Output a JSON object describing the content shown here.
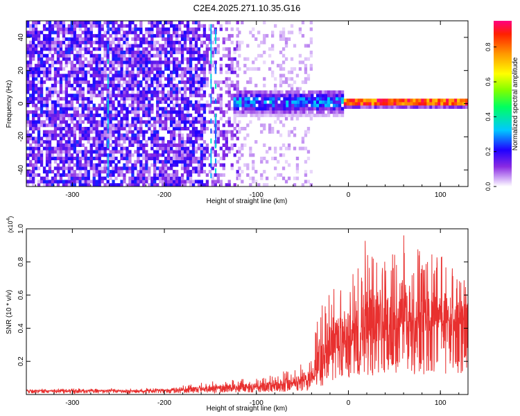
{
  "title": "C2E4.2025.271.10.35.G16",
  "chart_data": [
    {
      "type": "heatmap",
      "name": "spectrogram",
      "xlabel": "Height of straight line (km)",
      "ylabel": "Frequency (Hz)",
      "xlim": [
        -350,
        130
      ],
      "ylim": [
        -50,
        50
      ],
      "x_ticks": [
        -300,
        -200,
        -100,
        0,
        100
      ],
      "x_tick_labels": [
        "-300",
        "-200",
        "-100",
        "0",
        "100"
      ],
      "y_ticks": [
        -40,
        -20,
        0,
        20,
        40
      ],
      "y_tick_labels": [
        "-40",
        "-20",
        "0",
        "20",
        "40"
      ],
      "colorbar": {
        "label": "Normalized spectral amplitude",
        "range": [
          0,
          0.95
        ],
        "ticks": [
          0,
          0.2,
          0.4,
          0.6,
          0.8
        ],
        "tick_labels": [
          "0.0",
          "0.2",
          "0.4",
          "0.6",
          "0.8"
        ],
        "colormap": [
          "#ffffff",
          "#c9a6f5",
          "#8a2be2",
          "#6a00ff",
          "#0a00ff",
          "#00c8ff",
          "#00ff80",
          "#7fff00",
          "#ffff00",
          "#ff9900",
          "#ff0000",
          "#ff0080"
        ]
      },
      "regions": [
        {
          "x_range": [
            -350,
            -155
          ],
          "freq_spread": 50,
          "amplitude": 0.18,
          "density": 0.75
        },
        {
          "x_range": [
            -155,
            -120
          ],
          "freq_spread": 50,
          "amplitude": 0.12,
          "density": 0.45
        },
        {
          "x_range": [
            -120,
            -40
          ],
          "freq_spread": 50,
          "amplitude": 0.05,
          "density": 0.25
        },
        {
          "x_range": [
            -125,
            -5
          ],
          "freq_spread": 8,
          "amplitude": 0.3,
          "density": 0.9
        },
        {
          "x_range": [
            -5,
            130
          ],
          "freq_spread": 3,
          "amplitude": 0.9,
          "density": 1.0
        }
      ],
      "vertical_streaks": [
        -262,
        -150,
        -145
      ]
    },
    {
      "type": "line",
      "name": "snr",
      "xlabel": "Height of straight line (km)",
      "ylabel": "SNR (10 * v/v)",
      "y_multiplier_label": "(x10",
      "y_multiplier_exp": "4",
      "xlim": [
        -350,
        130
      ],
      "ylim": [
        0,
        1.0
      ],
      "x_ticks": [
        -300,
        -200,
        -100,
        0,
        100
      ],
      "x_tick_labels": [
        "-300",
        "-200",
        "-100",
        "0",
        "100"
      ],
      "y_ticks": [
        0.2,
        0.4,
        0.6,
        0.8,
        1.0
      ],
      "y_tick_labels": [
        "0.2",
        "0.4",
        "0.6",
        "0.8",
        "1.0"
      ],
      "series": [
        {
          "name": "SNR",
          "color": "#e8302f",
          "envelope": {
            "x": [
              -350,
              -200,
              -150,
              -100,
              -60,
              -40,
              -30,
              -20,
              0,
              20,
              40,
              60,
              80,
              100,
              130
            ],
            "y_mean": [
              0.02,
              0.02,
              0.03,
              0.04,
              0.06,
              0.08,
              0.15,
              0.22,
              0.28,
              0.33,
              0.38,
              0.4,
              0.4,
              0.4,
              0.42
            ],
            "y_max": [
              0.035,
              0.04,
              0.08,
              0.1,
              0.16,
              0.22,
              0.6,
              0.7,
              0.75,
              0.97,
              0.9,
              1.0,
              0.85,
              0.85,
              0.7
            ]
          }
        }
      ]
    }
  ]
}
